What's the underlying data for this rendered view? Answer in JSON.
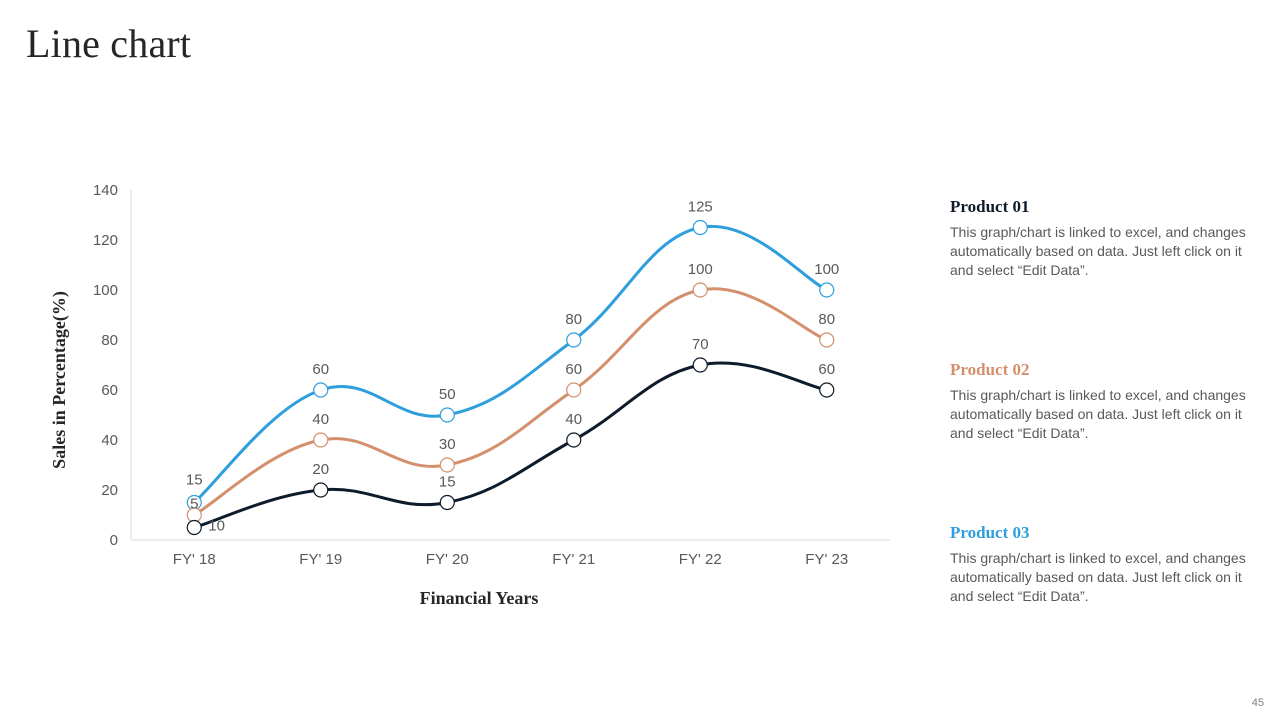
{
  "slide": {
    "title": "Line chart",
    "page_number": "45"
  },
  "legend": [
    {
      "name": "Product 01",
      "color": "#0d1b2a",
      "description": "This graph/chart is linked to excel, and changes automatically based on data. Just left click on it and select “Edit Data”."
    },
    {
      "name": "Product 02",
      "color": "#d4906c",
      "description": "This graph/chart is linked to excel, and changes automatically based on data. Just left click on it and select “Edit Data”."
    },
    {
      "name": "Product 03",
      "color": "#2e9fdc",
      "description": "This graph/chart is linked to excel, and changes automatically based on data. Just left click on it and select “Edit Data”."
    }
  ],
  "chart_data": {
    "type": "line",
    "title": "",
    "xlabel": "Financial Years",
    "ylabel": "Sales in Percentage(%)",
    "categories": [
      "FY' 18",
      "FY' 19",
      "FY' 20",
      "FY' 21",
      "FY' 22",
      "FY' 23"
    ],
    "ylim": [
      0,
      140
    ],
    "yticks": [
      0,
      20,
      40,
      60,
      80,
      100,
      120,
      140
    ],
    "grid": false,
    "smooth": true,
    "markers": "hollow-circle",
    "data_labels": true,
    "series": [
      {
        "name": "Product 03",
        "color": "#2e9fdc",
        "values": [
          15,
          60,
          50,
          80,
          125,
          100
        ]
      },
      {
        "name": "Product 02",
        "color": "#d4906c",
        "values": [
          10,
          40,
          30,
          60,
          100,
          80
        ]
      },
      {
        "name": "Product 01",
        "color": "#0d1b2a",
        "values": [
          5,
          20,
          15,
          40,
          70,
          60
        ]
      }
    ]
  }
}
